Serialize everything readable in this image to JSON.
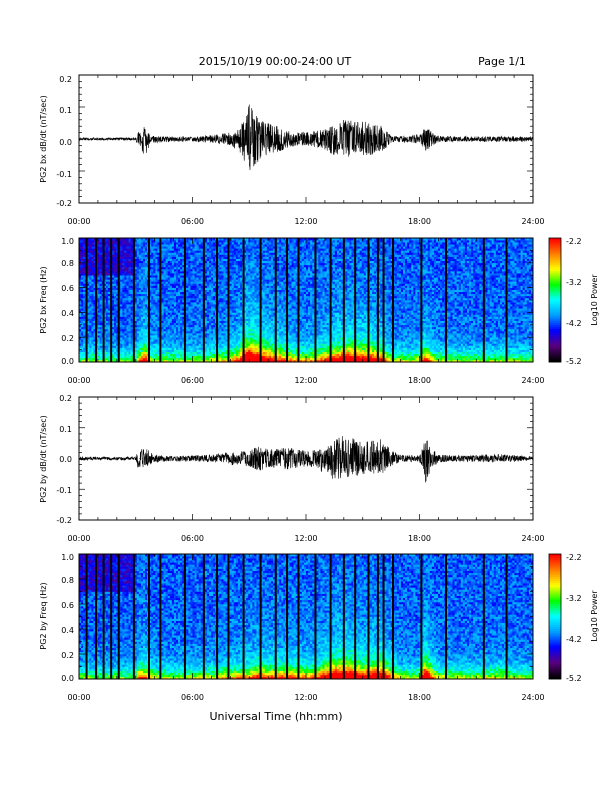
{
  "header": {
    "title": "2015/10/19   00:00-24:00 UT",
    "page": "Page 1/1"
  },
  "footer": {
    "xlabel": "Universal Time (hh:mm)"
  },
  "colors": {
    "trace": "#000000",
    "colormap": [
      "#000000",
      "#5a0080",
      "#0000ff",
      "#00a0ff",
      "#00ffff",
      "#00ff00",
      "#ffff00",
      "#ff8000",
      "#ff0000"
    ]
  },
  "chart_data": [
    {
      "type": "line",
      "ylabel": "PG2 bx dB/dt (nT/sec)",
      "xlabel": "",
      "xlim": [
        0,
        24
      ],
      "xticks": [
        "00:00",
        "06:00",
        "12:00",
        "18:00",
        "24:00"
      ],
      "ylim": [
        -0.2,
        0.2
      ],
      "yticks": [
        "0.2",
        "0.1",
        "0.0",
        "-0.1",
        "-0.2"
      ],
      "envelope": {
        "x": [
          0,
          3,
          3.1,
          3.5,
          3.8,
          4,
          5,
          6,
          7,
          8,
          8.5,
          9,
          9.5,
          10,
          10.5,
          11,
          11.5,
          12,
          12.5,
          13,
          13.5,
          14,
          14.5,
          15,
          15.5,
          16,
          16.5,
          17,
          17.5,
          18,
          18.3,
          18.7,
          19,
          20,
          21,
          22,
          23,
          24
        ],
        "upper": [
          0.004,
          0.004,
          0.02,
          0.04,
          0.008,
          0.01,
          0.007,
          0.006,
          0.012,
          0.02,
          0.03,
          0.11,
          0.06,
          0.05,
          0.04,
          0.03,
          0.02,
          0.02,
          0.025,
          0.03,
          0.045,
          0.06,
          0.06,
          0.055,
          0.05,
          0.04,
          0.01,
          0.01,
          0.01,
          0.015,
          0.04,
          0.02,
          0.01,
          0.008,
          0.008,
          0.008,
          0.008,
          0.006
        ],
        "lower": [
          -0.004,
          -0.004,
          -0.02,
          -0.06,
          -0.01,
          -0.012,
          -0.008,
          -0.007,
          -0.012,
          -0.02,
          -0.04,
          -0.1,
          -0.07,
          -0.045,
          -0.04,
          -0.03,
          -0.02,
          -0.02,
          -0.025,
          -0.035,
          -0.05,
          -0.055,
          -0.055,
          -0.05,
          -0.05,
          -0.04,
          -0.012,
          -0.01,
          -0.01,
          -0.015,
          -0.04,
          -0.02,
          -0.01,
          -0.008,
          -0.008,
          -0.008,
          -0.008,
          -0.006
        ]
      }
    },
    {
      "type": "heatmap",
      "ylabel": "PG2 bx Freq (Hz)",
      "xlabel": "",
      "xlim": [
        0,
        24
      ],
      "xticks": [
        "00:00",
        "06:00",
        "12:00",
        "18:00",
        "24:00"
      ],
      "ylim": [
        0,
        1.0
      ],
      "yticks": [
        "1.0",
        "0.8",
        "0.6",
        "0.4",
        "0.2",
        "0.0"
      ],
      "colorbar": {
        "label": "Log10 Power",
        "range": [
          -5.2,
          -2.2
        ],
        "ticks": [
          "-2.2",
          "-3.2",
          "-4.2",
          "-5.2"
        ]
      },
      "gap_times": [
        0.4,
        0.9,
        1.3,
        1.7,
        2.1,
        2.9,
        3.7,
        4.3,
        5.6,
        6.6,
        7.3,
        7.9,
        8.7,
        9.6,
        10.4,
        11.0,
        11.6,
        12.5,
        13.3,
        14.0,
        14.6,
        15.3,
        15.8,
        16.1,
        16.6,
        18.1,
        19.4,
        21.4,
        22.6
      ]
    },
    {
      "type": "line",
      "ylabel": "PG2 by dB/dt (nT/sec)",
      "xlabel": "",
      "xlim": [
        0,
        24
      ],
      "xticks": [
        "00:00",
        "06:00",
        "12:00",
        "18:00",
        "24:00"
      ],
      "ylim": [
        -0.2,
        0.2
      ],
      "yticks": [
        "0.2",
        "0.1",
        "0.0",
        "-0.1",
        "-0.2"
      ],
      "envelope": {
        "x": [
          0,
          3,
          3.1,
          3.5,
          4,
          5,
          6,
          7,
          8,
          9,
          9.5,
          10,
          11,
          12,
          12.5,
          13,
          13.5,
          14,
          14.5,
          15,
          15.5,
          16,
          16.5,
          17,
          18,
          18.3,
          18.7,
          19,
          20,
          21,
          22,
          23,
          24
        ],
        "upper": [
          0.005,
          0.005,
          0.025,
          0.035,
          0.012,
          0.008,
          0.01,
          0.012,
          0.02,
          0.025,
          0.04,
          0.03,
          0.035,
          0.025,
          0.03,
          0.04,
          0.06,
          0.075,
          0.065,
          0.05,
          0.06,
          0.07,
          0.03,
          0.01,
          0.01,
          0.07,
          0.03,
          0.012,
          0.01,
          0.01,
          0.015,
          0.01,
          0.006
        ],
        "lower": [
          -0.005,
          -0.005,
          -0.03,
          -0.03,
          -0.012,
          -0.008,
          -0.01,
          -0.012,
          -0.02,
          -0.025,
          -0.04,
          -0.03,
          -0.035,
          -0.025,
          -0.03,
          -0.05,
          -0.07,
          -0.06,
          -0.06,
          -0.05,
          -0.05,
          -0.05,
          -0.025,
          -0.01,
          -0.01,
          -0.08,
          -0.03,
          -0.012,
          -0.01,
          -0.01,
          -0.012,
          -0.01,
          -0.006
        ]
      }
    },
    {
      "type": "heatmap",
      "ylabel": "PG2 by Freq (Hz)",
      "xlabel": "Universal Time (hh:mm)",
      "xlim": [
        0,
        24
      ],
      "xticks": [
        "00:00",
        "06:00",
        "12:00",
        "18:00",
        "24:00"
      ],
      "ylim": [
        0,
        1.0
      ],
      "yticks": [
        "1.0",
        "0.8",
        "0.6",
        "0.4",
        "0.2",
        "0.0"
      ],
      "colorbar": {
        "label": "Log10 Power",
        "range": [
          -5.2,
          -2.2
        ],
        "ticks": [
          "-2.2",
          "-3.2",
          "-4.2",
          "-5.2"
        ]
      },
      "gap_times": [
        0.4,
        0.9,
        1.3,
        1.7,
        2.1,
        2.9,
        3.7,
        4.3,
        5.6,
        6.6,
        7.3,
        7.9,
        8.7,
        9.6,
        10.4,
        11.0,
        11.6,
        12.5,
        13.3,
        14.0,
        14.6,
        15.3,
        15.8,
        16.1,
        16.6,
        18.1,
        19.4,
        21.4,
        22.6
      ]
    }
  ]
}
